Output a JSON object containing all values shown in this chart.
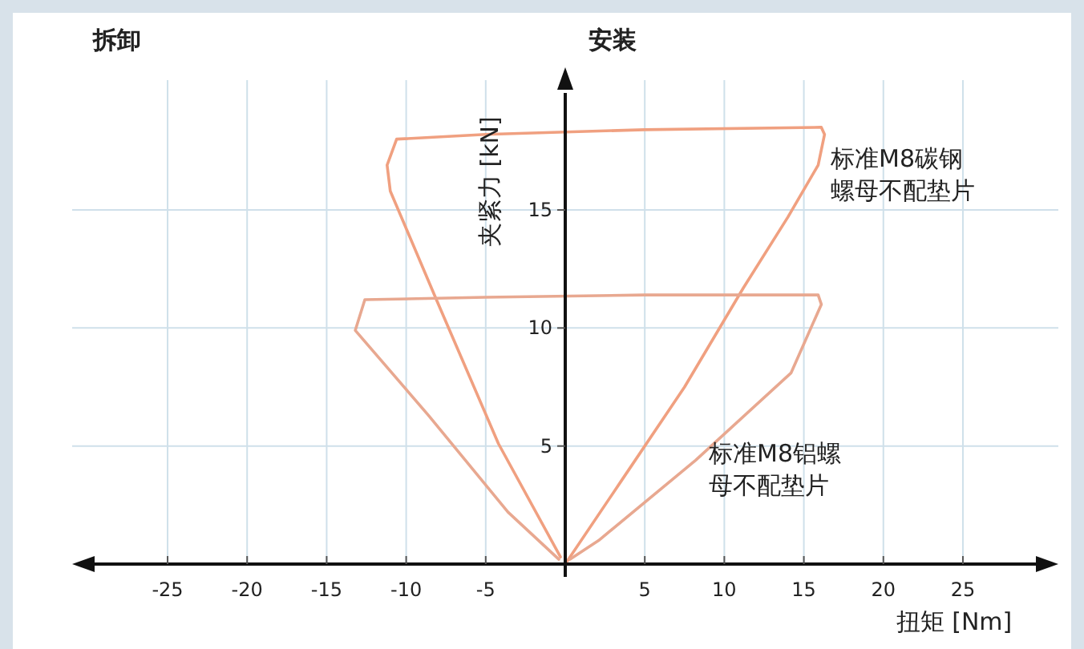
{
  "chart_data": {
    "type": "line",
    "xlabel": "扭矩 [Nm]",
    "ylabel": "夹紧力 [kN]",
    "annotations": [
      "拆卸",
      "安装"
    ],
    "xlim": [
      -31,
      31
    ],
    "ylim": [
      0,
      20.5
    ],
    "xticks": [
      -25,
      -20,
      -15,
      -10,
      -5,
      5,
      10,
      15,
      20,
      25
    ],
    "yticks": [
      5,
      10,
      15
    ],
    "grid": true,
    "marker": "none",
    "line_style": "solid",
    "series": [
      {
        "name": "标准M8碳钢螺母不配垫片",
        "color": "#f0a080",
        "x": [
          0,
          3.5,
          7.5,
          11.2,
          14,
          15.9,
          16.3,
          16.1,
          5,
          -5,
          -10.6,
          -11.2,
          -11,
          -8.1,
          -4.2,
          -0.3
        ],
        "values": [
          0,
          3.5,
          7.5,
          11.7,
          14.7,
          16.9,
          18.2,
          18.5,
          18.4,
          18.2,
          18.0,
          16.9,
          15.8,
          11.2,
          5.1,
          0.3
        ]
      },
      {
        "name": "标准M8铝螺母不配垫片",
        "color": "#e8a890",
        "x": [
          0.3,
          2.1,
          8.2,
          14.2,
          16.1,
          15.9,
          5,
          -5,
          -12.6,
          -13.2,
          -8.6,
          -3.6,
          -0.4
        ],
        "values": [
          0.2,
          1.0,
          4.4,
          8.1,
          11.0,
          11.4,
          11.4,
          11.3,
          11.2,
          9.9,
          6.3,
          2.2,
          0.2
        ]
      }
    ]
  }
}
